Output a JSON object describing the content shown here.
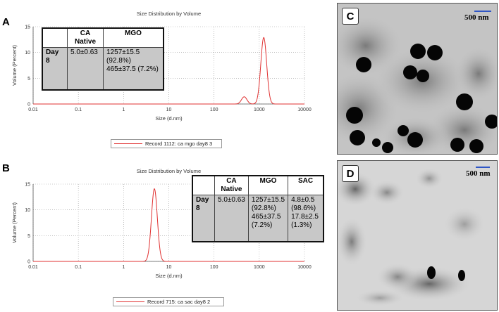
{
  "panels": {
    "A": "A",
    "B": "B",
    "C": "C",
    "D": "D"
  },
  "chart_data": [
    {
      "type": "line",
      "title": "Size Distribution by Volume",
      "xlabel": "Size (d.nm)",
      "ylabel": "Volume (Percent)",
      "xscale": "log",
      "xlim": [
        0.01,
        10000
      ],
      "ylim": [
        0,
        15
      ],
      "xticks": [
        "0.01",
        "0.1",
        "1",
        "10",
        "100",
        "1000",
        "10000"
      ],
      "yticks": [
        "0",
        "5",
        "10",
        "15"
      ],
      "grid": true,
      "legend": "Record 1112: ca mgo day8 3",
      "series": [
        {
          "name": "Record 1112: ca mgo day8 3",
          "color": "#e03030",
          "peaks": [
            {
              "center": 465,
              "height": 1.4,
              "width": 0.06
            },
            {
              "center": 1257,
              "height": 12.9,
              "width": 0.065
            }
          ]
        }
      ]
    },
    {
      "type": "line",
      "title": "Size Distribution by Volume",
      "xlabel": "Size (d.nm)",
      "ylabel": "Volume (Percent)",
      "xscale": "log",
      "xlim": [
        0.01,
        10000
      ],
      "ylim": [
        0,
        15
      ],
      "xticks": [
        "0.01",
        "0.1",
        "1",
        "10",
        "100",
        "1000",
        "10000"
      ],
      "yticks": [
        "0",
        "5",
        "10",
        "15"
      ],
      "grid": true,
      "legend": "Record 715: ca sac day8 2",
      "series": [
        {
          "name": "Record 715: ca sac day8 2",
          "color": "#e03030",
          "peaks": [
            {
              "center": 4.8,
              "height": 14.1,
              "width": 0.065
            }
          ]
        }
      ]
    }
  ],
  "tableA": {
    "headers": [
      "",
      "CA Native",
      "MGO"
    ],
    "day": "Day 8",
    "ca": "5.0±0.63",
    "mgo": "1257±15.5 (92.8%) 465±37.5 (7.2%)"
  },
  "tableB": {
    "headers": [
      "",
      "CA Native",
      "MGO",
      "SAC"
    ],
    "day": "Day 8",
    "ca": "5.0±0.63",
    "mgo": "1257±15.5 (92.8%) 465±37.5 (7.2%)",
    "sac": "4.8±0.5 (98.6%) 17.8±2.5 (1.3%)"
  },
  "micrographs": {
    "C": {
      "scale": "500 nm"
    },
    "D": {
      "scale": "500 nm"
    }
  },
  "colors": {
    "curve": "#e03030",
    "scalebar": "#2f56c6"
  }
}
